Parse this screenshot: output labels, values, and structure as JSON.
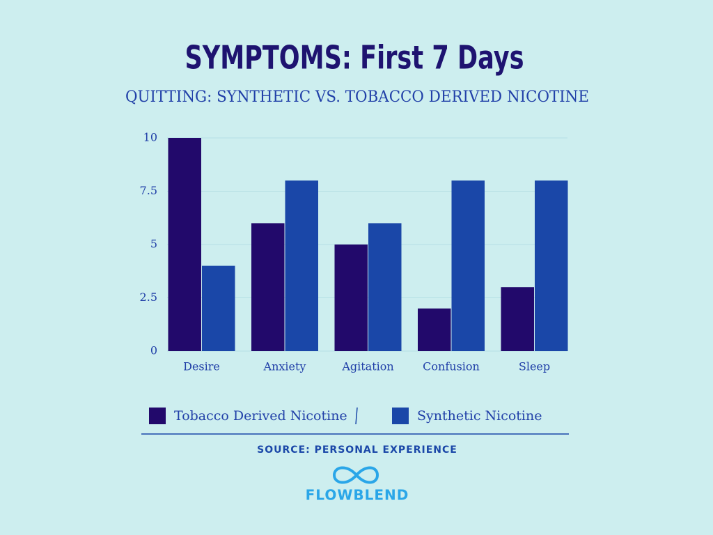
{
  "chart_data": {
    "type": "bar",
    "title": "SYMPTOMS: First 7 Days",
    "subtitle": "QUITTING: SYNTHETIC VS. TOBACCO DERIVED NICOTINE",
    "categories": [
      "Desire",
      "Anxiety",
      "Agitation",
      "Confusion",
      "Sleep"
    ],
    "series": [
      {
        "name": "Tobacco Derived Nicotine",
        "color": "#22096b",
        "values": [
          10,
          6,
          5,
          2,
          3
        ]
      },
      {
        "name": "Synthetic Nicotine",
        "color": "#1a47a8",
        "values": [
          4,
          8,
          6,
          8,
          8
        ]
      }
    ],
    "ylim": [
      0,
      10
    ],
    "yticks": [
      0,
      2.5,
      5,
      7.5,
      10
    ],
    "grid": true,
    "legend": "bottom",
    "source": "SOURCE:  PERSONAL EXPERIENCE",
    "logo": "FLOWBLEND"
  }
}
